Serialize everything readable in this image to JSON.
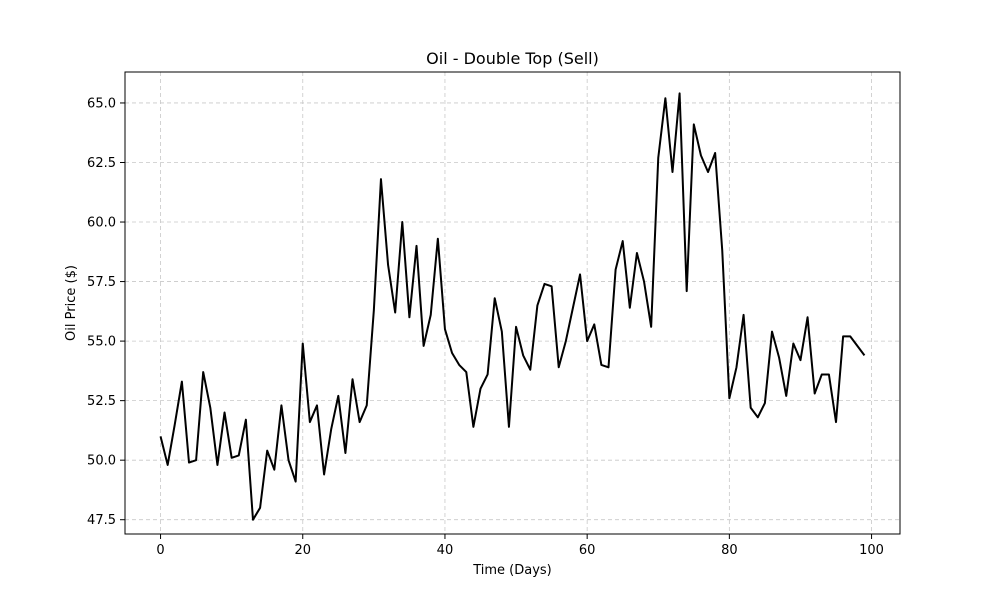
{
  "chart_data": {
    "type": "line",
    "title": "Oil - Double Top (Sell)",
    "xlabel": "Time (Days)",
    "ylabel": "Oil Price ($)",
    "xlim": [
      -5,
      104
    ],
    "ylim": [
      46.9,
      66.3
    ],
    "x_ticks": [
      0,
      20,
      40,
      60,
      80,
      100
    ],
    "x_tick_labels": [
      "0",
      "20",
      "40",
      "60",
      "80",
      "100"
    ],
    "y_ticks": [
      47.5,
      50.0,
      52.5,
      55.0,
      57.5,
      60.0,
      62.5,
      65.0
    ],
    "y_tick_labels": [
      "47.5",
      "50.0",
      "52.5",
      "55.0",
      "57.5",
      "60.0",
      "62.5",
      "65.0"
    ],
    "grid": true,
    "line_color": "#000000",
    "grid_color": "#c8c8c8",
    "series": [
      {
        "values": [
          51.0,
          49.8,
          51.5,
          53.3,
          49.9,
          50.0,
          53.7,
          52.2,
          49.8,
          52.0,
          50.1,
          50.2,
          51.7,
          47.5,
          48.0,
          50.4,
          49.6,
          52.3,
          50.0,
          49.1,
          54.9,
          51.6,
          52.3,
          49.4,
          51.3,
          52.7,
          50.3,
          53.4,
          51.6,
          52.3,
          56.3,
          61.8,
          58.2,
          56.2,
          60.0,
          56.0,
          59.0,
          54.8,
          56.1,
          59.3,
          55.5,
          54.5,
          54.0,
          53.7,
          51.4,
          53.0,
          53.6,
          56.8,
          55.4,
          51.4,
          55.6,
          54.4,
          53.8,
          56.5,
          57.4,
          57.3,
          53.9,
          55.0,
          56.4,
          57.8,
          55.0,
          55.7,
          54.0,
          53.9,
          58.0,
          59.2,
          56.4,
          58.7,
          57.5,
          55.6,
          62.7,
          65.2,
          62.1,
          65.4,
          57.1,
          64.1,
          62.8,
          62.1,
          62.9,
          58.8,
          52.6,
          53.9,
          56.1,
          52.2,
          51.8,
          52.4,
          55.4,
          54.3,
          52.7,
          54.9,
          54.2,
          56.0,
          52.8,
          53.6,
          53.6,
          51.6,
          55.2,
          55.2,
          54.8,
          54.4
        ]
      }
    ]
  }
}
